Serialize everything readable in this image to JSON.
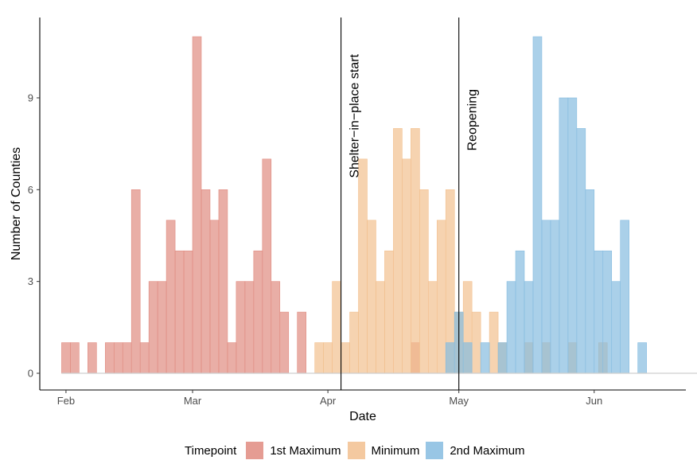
{
  "chart_data": {
    "type": "histogram",
    "xlabel": "Date",
    "ylabel": "Number of Counties",
    "x_ticks": [
      {
        "label": "Feb",
        "date": "2020-02-01"
      },
      {
        "label": "Mar",
        "date": "2020-03-01"
      },
      {
        "label": "Apr",
        "date": "2020-04-01"
      },
      {
        "label": "May",
        "date": "2020-05-01"
      },
      {
        "label": "Jun",
        "date": "2020-06-01"
      }
    ],
    "y_ticks": [
      0,
      3,
      6,
      9
    ],
    "ylim": [
      0,
      11.6
    ],
    "xlim": [
      "2020-01-26",
      "2020-06-22"
    ],
    "bin_width_days": 2,
    "grid": false,
    "legend_title": "Timepoint",
    "legend_position": "bottom",
    "vlines": [
      {
        "date": "2020-04-04",
        "label": "Shelter−in−place start"
      },
      {
        "date": "2020-05-01",
        "label": "Reopening"
      }
    ],
    "series": [
      {
        "name": "1st Maximum",
        "color": "#E08B80",
        "bins": [
          {
            "start": "2020-01-31",
            "count": 1
          },
          {
            "start": "2020-02-02",
            "count": 1
          },
          {
            "start": "2020-02-06",
            "count": 1
          },
          {
            "start": "2020-02-10",
            "count": 1
          },
          {
            "start": "2020-02-12",
            "count": 1
          },
          {
            "start": "2020-02-14",
            "count": 1
          },
          {
            "start": "2020-02-16",
            "count": 6
          },
          {
            "start": "2020-02-18",
            "count": 1
          },
          {
            "start": "2020-02-20",
            "count": 3
          },
          {
            "start": "2020-02-22",
            "count": 3
          },
          {
            "start": "2020-02-24",
            "count": 5
          },
          {
            "start": "2020-02-26",
            "count": 4
          },
          {
            "start": "2020-02-28",
            "count": 4
          },
          {
            "start": "2020-03-01",
            "count": 11
          },
          {
            "start": "2020-03-03",
            "count": 6
          },
          {
            "start": "2020-03-05",
            "count": 5
          },
          {
            "start": "2020-03-07",
            "count": 6
          },
          {
            "start": "2020-03-09",
            "count": 1
          },
          {
            "start": "2020-03-11",
            "count": 3
          },
          {
            "start": "2020-03-13",
            "count": 3
          },
          {
            "start": "2020-03-15",
            "count": 4
          },
          {
            "start": "2020-03-17",
            "count": 7
          },
          {
            "start": "2020-03-19",
            "count": 3
          },
          {
            "start": "2020-03-21",
            "count": 2
          },
          {
            "start": "2020-03-25",
            "count": 2
          },
          {
            "start": "2020-04-20",
            "count": 1
          }
        ]
      },
      {
        "name": "Minimum",
        "color": "#F2C08F",
        "bins": [
          {
            "start": "2020-03-29",
            "count": 1
          },
          {
            "start": "2020-03-31",
            "count": 1
          },
          {
            "start": "2020-04-02",
            "count": 3
          },
          {
            "start": "2020-04-04",
            "count": 1
          },
          {
            "start": "2020-04-06",
            "count": 2
          },
          {
            "start": "2020-04-08",
            "count": 7
          },
          {
            "start": "2020-04-10",
            "count": 5
          },
          {
            "start": "2020-04-12",
            "count": 3
          },
          {
            "start": "2020-04-14",
            "count": 4
          },
          {
            "start": "2020-04-16",
            "count": 8
          },
          {
            "start": "2020-04-18",
            "count": 7
          },
          {
            "start": "2020-04-20",
            "count": 8
          },
          {
            "start": "2020-04-22",
            "count": 6
          },
          {
            "start": "2020-04-24",
            "count": 3
          },
          {
            "start": "2020-04-26",
            "count": 5
          },
          {
            "start": "2020-04-28",
            "count": 6
          },
          {
            "start": "2020-04-30",
            "count": 2
          },
          {
            "start": "2020-05-02",
            "count": 3
          },
          {
            "start": "2020-05-04",
            "count": 2
          },
          {
            "start": "2020-05-08",
            "count": 2
          },
          {
            "start": "2020-05-10",
            "count": 1
          },
          {
            "start": "2020-05-16",
            "count": 1
          },
          {
            "start": "2020-05-20",
            "count": 1
          },
          {
            "start": "2020-05-26",
            "count": 1
          },
          {
            "start": "2020-06-02",
            "count": 1
          }
        ]
      },
      {
        "name": "2nd Maximum",
        "color": "#86BCE0",
        "bins": [
          {
            "start": "2020-04-28",
            "count": 1
          },
          {
            "start": "2020-04-30",
            "count": 2
          },
          {
            "start": "2020-05-02",
            "count": 1
          },
          {
            "start": "2020-05-06",
            "count": 1
          },
          {
            "start": "2020-05-10",
            "count": 1
          },
          {
            "start": "2020-05-12",
            "count": 3
          },
          {
            "start": "2020-05-14",
            "count": 4
          },
          {
            "start": "2020-05-16",
            "count": 3
          },
          {
            "start": "2020-05-18",
            "count": 11
          },
          {
            "start": "2020-05-20",
            "count": 5
          },
          {
            "start": "2020-05-22",
            "count": 5
          },
          {
            "start": "2020-05-24",
            "count": 9
          },
          {
            "start": "2020-05-26",
            "count": 9
          },
          {
            "start": "2020-05-28",
            "count": 8
          },
          {
            "start": "2020-05-30",
            "count": 6
          },
          {
            "start": "2020-06-01",
            "count": 4
          },
          {
            "start": "2020-06-03",
            "count": 4
          },
          {
            "start": "2020-06-05",
            "count": 3
          },
          {
            "start": "2020-06-07",
            "count": 5
          },
          {
            "start": "2020-06-11",
            "count": 1
          }
        ]
      }
    ]
  }
}
